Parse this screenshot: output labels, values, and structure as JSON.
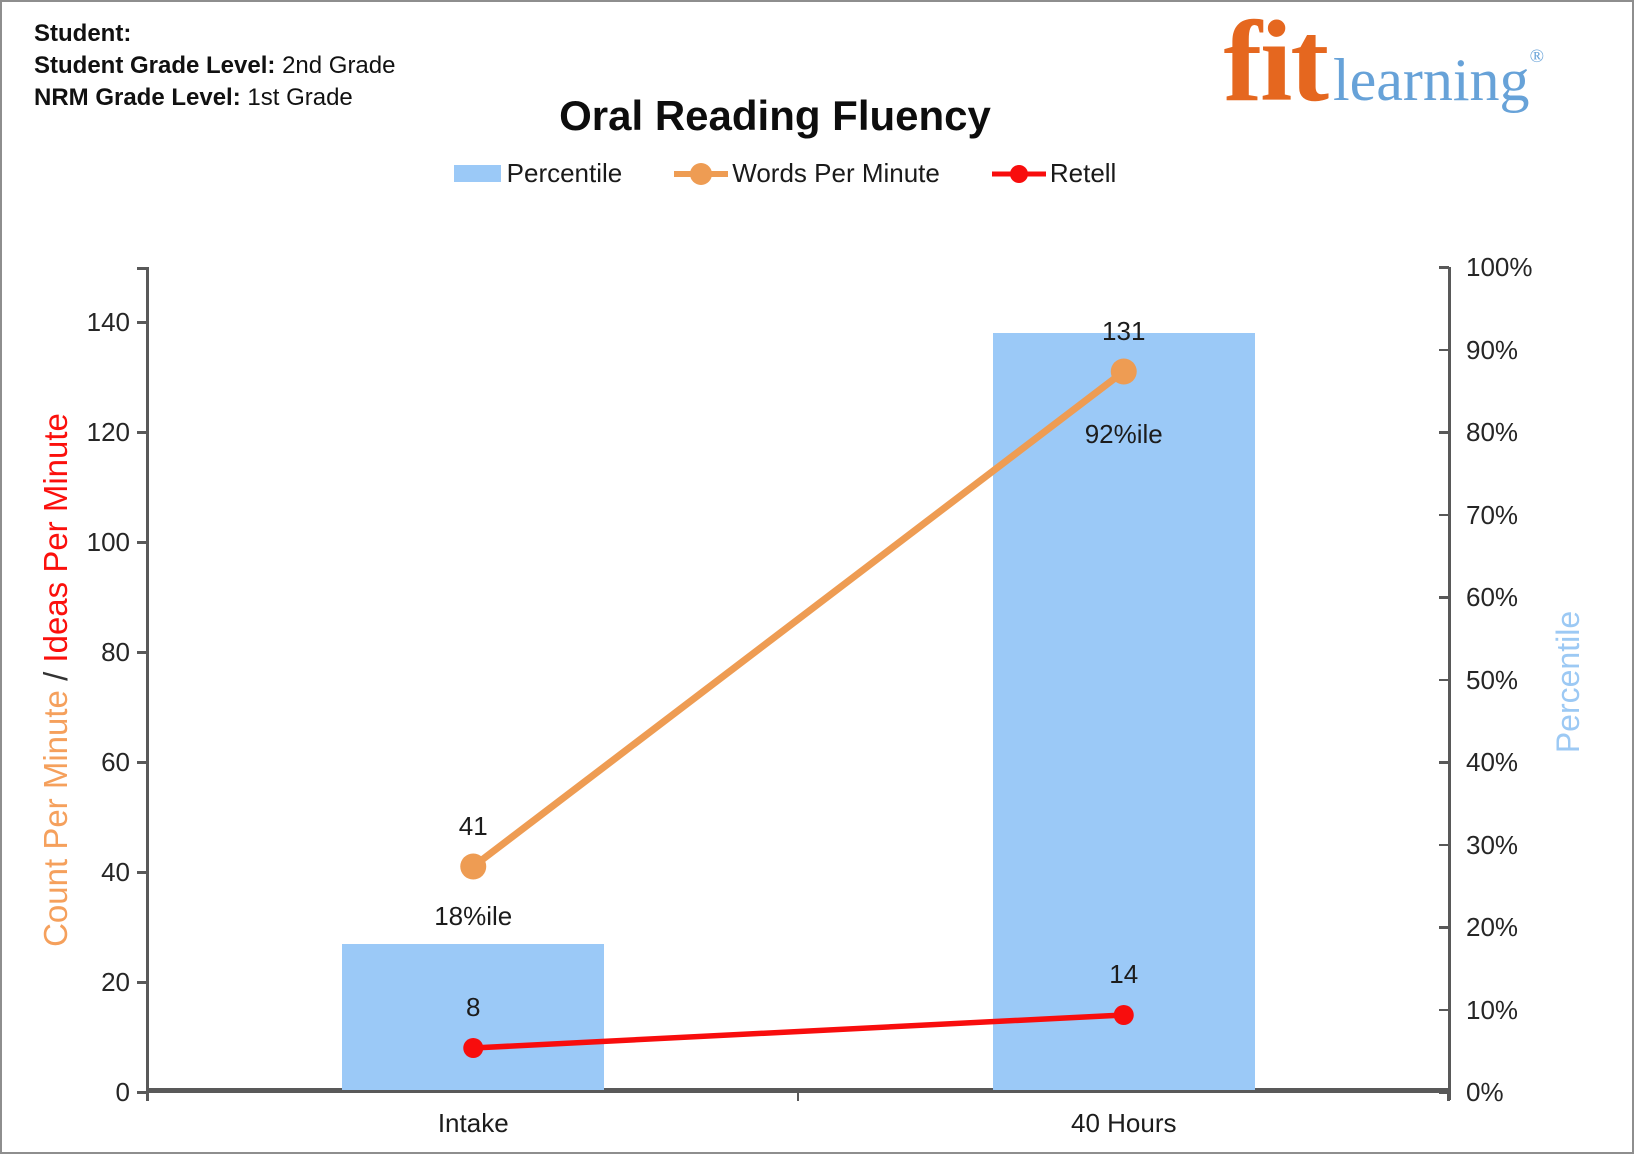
{
  "header": {
    "student_label": "Student:",
    "student_grade_label": "Student Grade Level:",
    "student_grade_value": "2nd Grade",
    "nrm_grade_label": "NRM Grade Level:",
    "nrm_grade_value": "1st Grade",
    "title": "Oral Reading Fluency",
    "logo": {
      "word1": "fit",
      "word2": "learning",
      "registered": "®"
    }
  },
  "legend": {
    "items": [
      {
        "label": "Percentile",
        "type": "bar"
      },
      {
        "label": "Words Per Minute",
        "type": "line"
      },
      {
        "label": "Retell",
        "type": "line"
      }
    ]
  },
  "colors": {
    "bar_fill": "#9BC9F7",
    "wpm_line": "#EE9C53",
    "retell_line": "#F80D0D",
    "axis_line": "#595959",
    "tick_text": "#262626",
    "logo_orange": "#E5671F",
    "logo_blue": "#67A2D8",
    "count_per_minute_text": "#F5A05C",
    "ideas_per_minute_text": "#FB100C",
    "slash_text": "#333333",
    "percentile_axis_text": "#9CC9F4"
  },
  "chart_data": {
    "type": "bar",
    "subtype": "combo-bar-line-dual-axis",
    "title": "Oral Reading Fluency",
    "categories": [
      "Intake",
      "40 Hours"
    ],
    "bar_series": {
      "name": "Percentile",
      "axis": "right",
      "values": [
        18,
        92
      ],
      "labels": [
        "18%ile",
        "92%ile"
      ]
    },
    "line_series": [
      {
        "name": "Words Per Minute",
        "axis": "left",
        "values": [
          41,
          131
        ],
        "labels": [
          "41",
          "131"
        ]
      },
      {
        "name": "Retell",
        "axis": "left",
        "values": [
          8,
          14
        ],
        "labels": [
          "8",
          "14"
        ]
      }
    ],
    "left_axis": {
      "title_orange": "Count Per Minute",
      "title_slash": " / ",
      "title_red": "Ideas Per Minute",
      "min": 0,
      "max": 150,
      "tick_step": 20,
      "last_labeled_tick": 140,
      "tick_labels": [
        "0",
        "20",
        "40",
        "60",
        "80",
        "100",
        "120",
        "140"
      ]
    },
    "right_axis": {
      "title": "Percentile",
      "min": 0,
      "max": 100,
      "tick_step": 10,
      "suffix": "%",
      "tick_labels": [
        "0%",
        "10%",
        "20%",
        "30%",
        "40%",
        "50%",
        "60%",
        "70%",
        "80%",
        "90%",
        "100%"
      ]
    },
    "grid": false,
    "legend_position": "top"
  }
}
